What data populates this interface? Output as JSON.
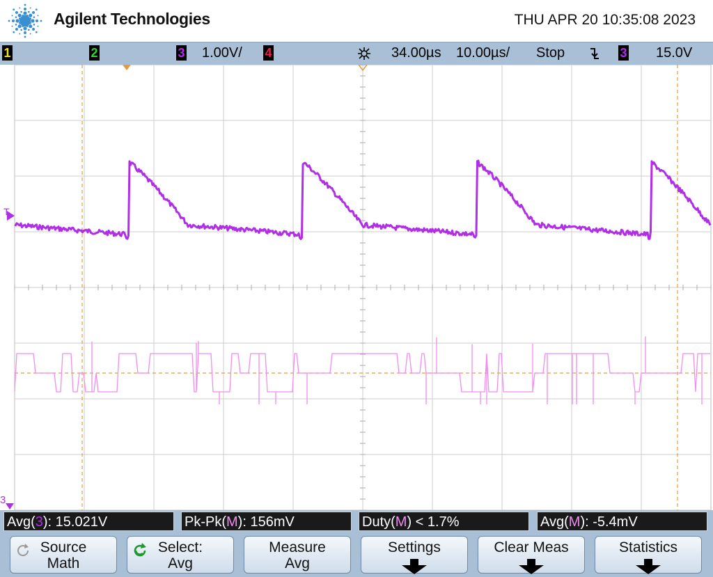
{
  "header": {
    "brand": "Agilent Technologies",
    "datetime": "THU APR 20 10:35:08 2023"
  },
  "statusbar": {
    "ch1": "1",
    "ch2": "2",
    "ch3": "3",
    "ch3_scale": "1.00V/",
    "ch4": "4",
    "time_delay": "34.00µs",
    "time_scale": "10.00µs/",
    "run_state": "Stop",
    "trigger_slope_icon": "falling-edge-icon",
    "trigger_source": "3",
    "trigger_level": "15.0V"
  },
  "screen": {
    "trigger_marker": "T",
    "ch3_ground_marker": "3"
  },
  "measurements": [
    {
      "prefix": "Avg(",
      "src": "3",
      "suffix": "): 15.021V"
    },
    {
      "prefix": "Pk-Pk(",
      "src": "M",
      "suffix": "): 156mV"
    },
    {
      "prefix": "Duty(",
      "src": "M",
      "suffix": ") < 1.7%"
    },
    {
      "prefix": "Avg(",
      "src": "M",
      "suffix": "): -5.4mV"
    }
  ],
  "softkeys": [
    {
      "line1": "Source",
      "line2": "Math"
    },
    {
      "line1": "Select:",
      "line2": "Avg"
    },
    {
      "line1": "Measure",
      "line2": "Avg"
    },
    {
      "line1": "Settings",
      "line2": ""
    },
    {
      "line1": "Clear Meas",
      "line2": ""
    },
    {
      "line1": "Statistics",
      "line2": ""
    }
  ],
  "colors": {
    "ch1": "#f2e41a",
    "ch2": "#35d13a",
    "ch3": "#b02fe6",
    "ch4": "#e8224a",
    "math": "#f08cf0",
    "cursor": "#e89a3a",
    "grid": "#c8c8c8",
    "bar": "#a9bfd6"
  }
}
